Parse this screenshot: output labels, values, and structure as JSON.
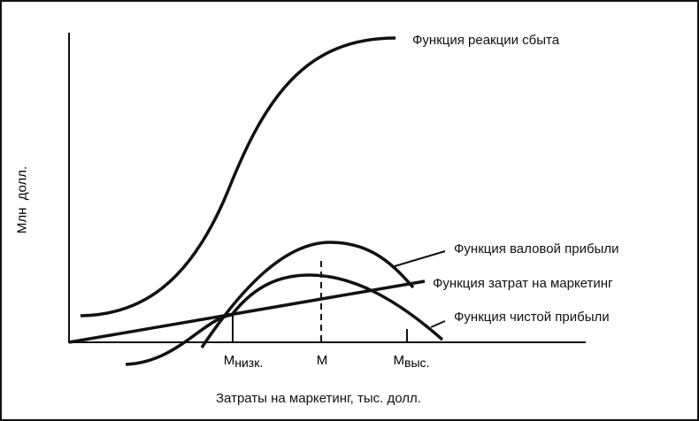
{
  "y_axis_label": "Млн  долл.",
  "x_axis_label": "Затраты на маркетинг, тыс. долл.",
  "curves": {
    "sales_response": "Функция реакции сбыта",
    "gross_profit": "Функция валовой прибыли",
    "marketing_cost": "Функция затрат на маркетинг",
    "net_profit": "Функция чистой прибыли"
  },
  "ticks": {
    "low": {
      "main": "М",
      "sub": "низк."
    },
    "optimal": {
      "main": "М",
      "sub": ""
    },
    "high": {
      "main": "М",
      "sub": "выс."
    }
  },
  "colors": {
    "line": "#111111",
    "background": "#ffffff"
  }
}
